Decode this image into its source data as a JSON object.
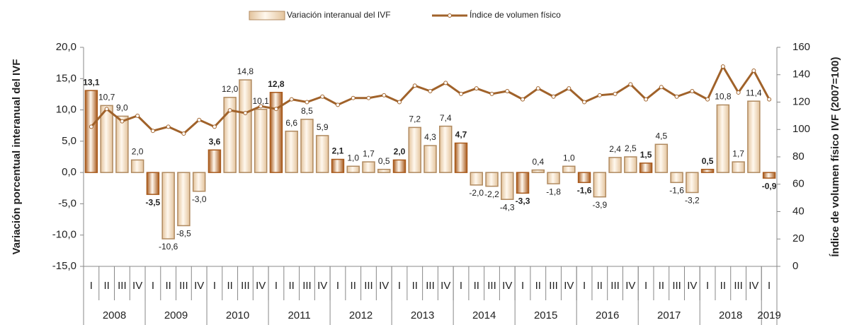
{
  "chart_data": {
    "type": "bar_line",
    "categories": [
      "I",
      "II",
      "III",
      "IV",
      "I",
      "II",
      "III",
      "IV",
      "I",
      "II",
      "III",
      "IV",
      "I",
      "II",
      "III",
      "IV",
      "I",
      "II",
      "III",
      "IV",
      "I",
      "II",
      "III",
      "IV",
      "I",
      "II",
      "III",
      "IV",
      "I",
      "II",
      "III",
      "IV",
      "I",
      "II",
      "III",
      "IV",
      "I",
      "II",
      "III",
      "IV",
      "I",
      "II",
      "III",
      "IV",
      "I"
    ],
    "years": [
      "2008",
      "2009",
      "2010",
      "2011",
      "2012",
      "2013",
      "2014",
      "2015",
      "2016",
      "2017",
      "2018",
      "2019"
    ],
    "y_label": "Variación porcentual interanual del IVF",
    "y2_label": "Índice de volumen físico IVF (2007=100)",
    "ylim": [
      -15,
      20
    ],
    "yticks": [
      {
        "value": -15,
        "label": "-15,0"
      },
      {
        "value": -10,
        "label": "-10,0"
      },
      {
        "value": -5,
        "label": "-5,0"
      },
      {
        "value": 0,
        "label": "0,0"
      },
      {
        "value": 5,
        "label": "5,0"
      },
      {
        "value": 10,
        "label": "10,0"
      },
      {
        "value": 15,
        "label": "15,0"
      },
      {
        "value": 20,
        "label": "20,0"
      }
    ],
    "y2lim": [
      0,
      160
    ],
    "y2ticks": [
      0,
      20,
      40,
      60,
      80,
      100,
      120,
      140,
      160
    ],
    "series": [
      {
        "name": "Variación interanual del IVF",
        "type": "bar",
        "color": "#e3c39c",
        "highlight_color": "#a85a1c",
        "values": [
          13.1,
          10.7,
          9.0,
          2.0,
          -3.5,
          -10.6,
          -8.5,
          -3.0,
          3.6,
          12.0,
          14.8,
          10.1,
          12.8,
          6.6,
          8.5,
          5.9,
          2.1,
          1.0,
          1.7,
          0.5,
          2.0,
          7.2,
          4.3,
          7.4,
          4.7,
          -2.0,
          -2.2,
          -4.3,
          -3.3,
          0.4,
          -1.8,
          1.0,
          -1.6,
          -3.9,
          2.4,
          2.5,
          1.5,
          4.5,
          -1.6,
          -3.2,
          0.5,
          10.8,
          1.7,
          11.4,
          -0.9
        ],
        "value_labels": [
          "13,1",
          "10,7",
          "9,0",
          "2,0",
          "-3,5",
          "-10,6",
          "-8,5",
          "-3,0",
          "3,6",
          "12,0",
          "14,8",
          "10,1",
          "12,8",
          "6,6",
          "8,5",
          "5,9",
          "2,1",
          "1,0",
          "1,7",
          "0,5",
          "2,0",
          "7,2",
          "4,3",
          "7,4",
          "4,7",
          "-2,0",
          "-2,2",
          "-4,3",
          "-3,3",
          "0,4",
          "-1,8",
          "1,0",
          "-1,6",
          "-3,9",
          "2,4",
          "2,5",
          "1,5",
          "4,5",
          "-1,6",
          "-3,2",
          "0,5",
          "10,8",
          "1,7",
          "11,4",
          "-0,9"
        ]
      },
      {
        "name": "Índice de volumen físico",
        "type": "line",
        "axis": "y2",
        "color": "#a0622a",
        "values": [
          102,
          115,
          106,
          110,
          99,
          102,
          97,
          107,
          102,
          114,
          112,
          117,
          115,
          122,
          120,
          124,
          118,
          123,
          123,
          125,
          120,
          132,
          128,
          134,
          126,
          130,
          126,
          128,
          122,
          130,
          124,
          130,
          120,
          125,
          126,
          133,
          122,
          131,
          124,
          128,
          122,
          146,
          127,
          143,
          122
        ]
      }
    ]
  }
}
